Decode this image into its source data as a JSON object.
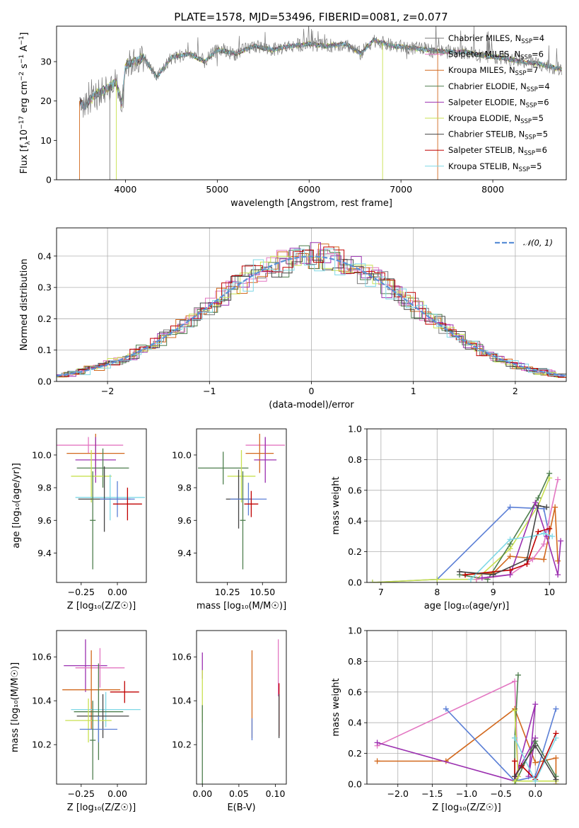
{
  "colors": {
    "chabrier_miles": "#7a7a7a",
    "salpeter_miles": "#e377c2",
    "kroupa_miles": "#d2691e",
    "chabrier_elodie": "#4f7f4f",
    "salpeter_elodie": "#9b30b0",
    "kroupa_elodie": "#c8e050",
    "chabrier_stelib": "#444444",
    "salpeter_stelib": "#c00000",
    "kroupa_stelib": "#7fd8e6",
    "extra_blue": "#5b7fd6",
    "gaussian": "#5b8fd6"
  },
  "chart_data": [
    {
      "id": "spectrum",
      "type": "line",
      "title": "PLATE=1578, MJD=53496, FIBERID=0081, z=0.077",
      "xlabel": "wavelength [Angstrom, rest frame]",
      "ylabel_parts": {
        "pre": "Flux [f",
        "sub": "λ",
        "mid": "10",
        "sup1": "−17",
        "post": " erg cm",
        "sup2": "−2",
        "s": " s",
        "sup3": "−1",
        "a": " A",
        "sup4": "−1",
        "end": "]"
      },
      "xlim": [
        3250,
        8800
      ],
      "ylim": [
        0,
        39
      ],
      "xticks": [
        4000,
        5000,
        6000,
        7000,
        8000
      ],
      "yticks": [
        0,
        10,
        20,
        30
      ],
      "legend_position": "right",
      "legend": [
        {
          "name": "Chabrier MILES",
          "n": "4",
          "color_key": "chabrier_miles"
        },
        {
          "name": "Salpeter MILES",
          "n": "6",
          "color_key": "salpeter_miles"
        },
        {
          "name": "Kroupa MILES",
          "n": "7",
          "color_key": "kroupa_miles"
        },
        {
          "name": "Chabrier ELODIE",
          "n": "4",
          "color_key": "chabrier_elodie"
        },
        {
          "name": "Salpeter ELODIE",
          "n": "6",
          "color_key": "salpeter_elodie"
        },
        {
          "name": "Kroupa ELODIE",
          "n": "5",
          "color_key": "kroupa_elodie"
        },
        {
          "name": "Chabrier STELIB",
          "n": "5",
          "color_key": "chabrier_stelib"
        },
        {
          "name": "Salpeter STELIB",
          "n": "6",
          "color_key": "salpeter_stelib"
        },
        {
          "name": "Kroupa STELIB",
          "n": "5",
          "color_key": "kroupa_stelib"
        }
      ],
      "legend_n_label": "N",
      "legend_n_sub": "SSP",
      "envelope": {
        "x": [
          3500,
          3560,
          3600,
          3700,
          3800,
          3900,
          3960,
          4000,
          4100,
          4200,
          4340,
          4500,
          4700,
          4861,
          5000,
          5200,
          5400,
          5600,
          5800,
          6000,
          6200,
          6400,
          6563,
          6700,
          6900,
          7100,
          7300,
          7500,
          7700,
          7900,
          8100,
          8300,
          8500,
          8750
        ],
        "y": [
          20,
          18.5,
          20,
          22,
          23,
          25,
          19,
          29,
          30,
          31,
          26,
          31,
          32,
          30,
          33,
          32,
          34,
          33,
          34,
          34.5,
          34,
          34.5,
          32,
          35.5,
          34,
          33.5,
          33,
          32.5,
          32.5,
          31.5,
          31,
          30,
          29.5,
          28
        ]
      }
    },
    {
      "id": "residuals",
      "type": "histogram",
      "xlabel": "(data-model)/error",
      "ylabel": "Normed distribution",
      "xlim": [
        -2.5,
        2.5
      ],
      "ylim": [
        0,
        0.49
      ],
      "xticks": [
        -2,
        -1,
        0,
        1,
        2
      ],
      "yticks": [
        0.0,
        0.1,
        0.2,
        0.3,
        0.4
      ],
      "legend_position": "top-right",
      "legend_label": "𝒩(0, 1)",
      "curve": "gaussian, mean 0, sigma 1"
    },
    {
      "id": "age_vs_Z",
      "type": "errorbar",
      "xlabel": "Z [log₁₀(Z/Z☉)]",
      "ylabel": "age  [log₁₀(age/yr)]",
      "xlim": [
        -0.42,
        0.2
      ],
      "ylim": [
        9.22,
        10.16
      ],
      "xticks": [
        -0.25,
        0.0
      ],
      "yticks": [
        9.4,
        9.6,
        9.8,
        10.0
      ],
      "points": [
        {
          "x": -0.2,
          "y": 10.06,
          "xerr": 0.24,
          "yerr": 0.05,
          "color_key": "salpeter_miles"
        },
        {
          "x": -0.15,
          "y": 10.01,
          "xerr": 0.2,
          "yerr": 0.12,
          "color_key": "kroupa_miles"
        },
        {
          "x": -0.15,
          "y": 9.97,
          "xerr": 0.14,
          "yerr": 0.14,
          "color_key": "salpeter_elodie"
        },
        {
          "x": -0.1,
          "y": 9.92,
          "xerr": 0.18,
          "yerr": 0.12,
          "color_key": "chabrier_elodie"
        },
        {
          "x": -0.18,
          "y": 9.87,
          "xerr": 0.14,
          "yerr": 0.16,
          "color_key": "kroupa_elodie"
        },
        {
          "x": -0.05,
          "y": 9.74,
          "xerr": 0.24,
          "yerr": 0.14,
          "color_key": "kroupa_stelib"
        },
        {
          "x": -0.09,
          "y": 9.73,
          "xerr": 0.18,
          "yerr": 0.2,
          "color_key": "chabrier_stelib"
        },
        {
          "x": 0.0,
          "y": 9.73,
          "xerr": 0.12,
          "yerr": 0.11,
          "color_key": "extra_blue"
        },
        {
          "x": 0.07,
          "y": 9.7,
          "xerr": 0.1,
          "yerr": 0.1,
          "color_key": "salpeter_stelib"
        },
        {
          "x": -0.17,
          "y": 9.6,
          "xerr": 0.02,
          "yerr": 0.3,
          "color_key": "chabrier_elodie"
        }
      ]
    },
    {
      "id": "age_vs_mass",
      "type": "errorbar",
      "xlabel": "mass [log₁₀(M/M☉)]",
      "ylabel": "",
      "xlim": [
        10.03,
        10.67
      ],
      "ylim": [
        9.22,
        10.16
      ],
      "xticks": [
        10.25,
        10.5
      ],
      "yticks": [
        9.4,
        9.6,
        9.8,
        10.0
      ],
      "points": [
        {
          "x": 10.52,
          "y": 10.06,
          "xerr": 0.14,
          "yerr": 0.05,
          "color_key": "salpeter_miles"
        },
        {
          "x": 10.48,
          "y": 10.01,
          "xerr": 0.1,
          "yerr": 0.12,
          "color_key": "kroupa_miles"
        },
        {
          "x": 10.52,
          "y": 9.97,
          "xerr": 0.08,
          "yerr": 0.14,
          "color_key": "salpeter_elodie"
        },
        {
          "x": 10.22,
          "y": 9.92,
          "xerr": 0.18,
          "yerr": 0.1,
          "color_key": "chabrier_elodie"
        },
        {
          "x": 10.35,
          "y": 9.87,
          "xerr": 0.1,
          "yerr": 0.16,
          "color_key": "kroupa_elodie"
        },
        {
          "x": 10.33,
          "y": 9.73,
          "xerr": 0.09,
          "yerr": 0.18,
          "color_key": "chabrier_stelib"
        },
        {
          "x": 10.4,
          "y": 9.73,
          "xerr": 0.13,
          "yerr": 0.1,
          "color_key": "extra_blue"
        },
        {
          "x": 10.42,
          "y": 9.7,
          "xerr": 0.05,
          "yerr": 0.08,
          "color_key": "salpeter_stelib"
        },
        {
          "x": 10.36,
          "y": 9.6,
          "xerr": 0.02,
          "yerr": 0.3,
          "color_key": "chabrier_elodie"
        }
      ]
    },
    {
      "id": "weight_vs_age",
      "type": "line",
      "xlabel": "age  [log₁₀(age/yr)]",
      "ylabel": "mass weight",
      "xlim": [
        6.75,
        10.3
      ],
      "ylim": [
        0.0,
        1.0
      ],
      "xticks": [
        7,
        8,
        9,
        10
      ],
      "yticks": [
        0.0,
        0.2,
        0.4,
        0.6,
        0.8,
        1.0
      ],
      "series": [
        {
          "color_key": "extra_blue",
          "x": [
            6.85,
            8.0,
            9.3,
            9.9,
            10.0
          ],
          "y": [
            0.0,
            0.02,
            0.49,
            0.48,
            0.3
          ]
        },
        {
          "color_key": "kroupa_elodie",
          "x": [
            6.85,
            8.0,
            8.7,
            9.3,
            9.8,
            10.0
          ],
          "y": [
            0.0,
            0.02,
            0.02,
            0.22,
            0.5,
            0.68
          ]
        },
        {
          "color_key": "chabrier_elodie",
          "x": [
            8.4,
            8.9,
            9.3,
            9.8,
            10.0
          ],
          "y": [
            0.05,
            0.02,
            0.25,
            0.55,
            0.71
          ]
        },
        {
          "color_key": "kroupa_miles",
          "x": [
            8.5,
            9.0,
            9.3,
            9.9,
            10.1,
            10.15
          ],
          "y": [
            0.05,
            0.06,
            0.17,
            0.15,
            0.49,
            0.14
          ]
        },
        {
          "color_key": "salpeter_miles",
          "x": [
            8.7,
            9.3,
            9.7,
            9.9,
            10.15
          ],
          "y": [
            0.02,
            0.05,
            0.15,
            0.25,
            0.67
          ]
        },
        {
          "color_key": "salpeter_elodie",
          "x": [
            8.8,
            9.3,
            9.75,
            9.95,
            10.15,
            10.2
          ],
          "y": [
            0.03,
            0.05,
            0.52,
            0.3,
            0.05,
            0.27
          ]
        },
        {
          "color_key": "salpeter_stelib",
          "x": [
            8.5,
            9.3,
            9.6,
            9.8,
            10.0
          ],
          "y": [
            0.05,
            0.08,
            0.12,
            0.33,
            0.35
          ]
        },
        {
          "color_key": "kroupa_stelib",
          "x": [
            8.6,
            9.3,
            9.7,
            9.9,
            10.05
          ],
          "y": [
            0.02,
            0.28,
            0.3,
            0.32,
            0.3
          ]
        },
        {
          "color_key": "chabrier_stelib",
          "x": [
            8.4,
            9.0,
            9.6,
            9.8,
            9.95
          ],
          "y": [
            0.07,
            0.05,
            0.15,
            0.5,
            0.49
          ]
        }
      ]
    },
    {
      "id": "mass_vs_Z",
      "type": "errorbar",
      "xlabel": "Z [log₁₀(Z/Z☉)]",
      "ylabel": "mass [log₁₀(M/M☉)]",
      "xlim": [
        -0.42,
        0.2
      ],
      "ylim": [
        10.02,
        10.72
      ],
      "xticks": [
        -0.25,
        0.0
      ],
      "yticks": [
        10.2,
        10.4,
        10.6
      ],
      "points": [
        {
          "x": -0.22,
          "y": 10.56,
          "xerr": 0.15,
          "yerr": 0.12,
          "color_key": "salpeter_elodie"
        },
        {
          "x": -0.12,
          "y": 10.55,
          "xerr": 0.17,
          "yerr": 0.09,
          "color_key": "salpeter_miles"
        },
        {
          "x": -0.18,
          "y": 10.45,
          "xerr": 0.2,
          "yerr": 0.18,
          "color_key": "kroupa_miles"
        },
        {
          "x": 0.05,
          "y": 10.44,
          "xerr": 0.1,
          "yerr": 0.05,
          "color_key": "salpeter_stelib"
        },
        {
          "x": -0.08,
          "y": 10.36,
          "xerr": 0.24,
          "yerr": 0.08,
          "color_key": "kroupa_stelib"
        },
        {
          "x": -0.13,
          "y": 10.35,
          "xerr": 0.17,
          "yerr": 0.22,
          "color_key": "chabrier_elodie"
        },
        {
          "x": -0.1,
          "y": 10.33,
          "xerr": 0.18,
          "yerr": 0.1,
          "color_key": "chabrier_stelib"
        },
        {
          "x": -0.2,
          "y": 10.31,
          "xerr": 0.16,
          "yerr": 0.1,
          "color_key": "kroupa_elodie"
        },
        {
          "x": -0.13,
          "y": 10.27,
          "xerr": 0.13,
          "yerr": 0.06,
          "color_key": "extra_blue"
        },
        {
          "x": -0.17,
          "y": 10.22,
          "xerr": 0.02,
          "yerr": 0.18,
          "color_key": "chabrier_elodie"
        }
      ]
    },
    {
      "id": "mass_vs_EBV",
      "type": "errorbar",
      "xlabel": "E(B-V)",
      "ylabel": "",
      "xlim": [
        -0.008,
        0.115
      ],
      "ylim": [
        10.02,
        10.72
      ],
      "xticks": [
        0.0,
        0.05,
        0.1
      ],
      "xtick_labels": [
        "0.00",
        "0.05",
        "0.10"
      ],
      "yticks": [
        10.2,
        10.4,
        10.6
      ],
      "points": [
        {
          "x": 0.0,
          "y": 10.56,
          "xerr": 0,
          "yerr": 0.06,
          "color_key": "salpeter_elodie"
        },
        {
          "x": 0.0,
          "y": 10.42,
          "xerr": 0,
          "yerr": 0.12,
          "color_key": "kroupa_elodie"
        },
        {
          "x": 0.0,
          "y": 10.2,
          "xerr": 0,
          "yerr": 0.18,
          "color_key": "chabrier_elodie"
        },
        {
          "x": 0.068,
          "y": 10.43,
          "xerr": 0,
          "yerr": 0.2,
          "color_key": "kroupa_miles"
        },
        {
          "x": 0.068,
          "y": 10.27,
          "xerr": 0,
          "yerr": 0.05,
          "color_key": "extra_blue"
        },
        {
          "x": 0.104,
          "y": 10.55,
          "xerr": 0,
          "yerr": 0.13,
          "color_key": "salpeter_miles"
        },
        {
          "x": 0.105,
          "y": 10.36,
          "xerr": 0,
          "yerr": 0.12,
          "color_key": "salpeter_stelib"
        },
        {
          "x": 0.105,
          "y": 10.33,
          "xerr": 0,
          "yerr": 0.1,
          "color_key": "chabrier_stelib"
        }
      ]
    },
    {
      "id": "weight_vs_Z",
      "type": "line",
      "xlabel": "Z [log₁₀(Z/Z☉)]",
      "ylabel": "mass weight",
      "xlim": [
        -2.45,
        0.45
      ],
      "ylim": [
        0.0,
        1.0
      ],
      "xticks": [
        -2.0,
        -1.5,
        -1.0,
        -0.5,
        0.0
      ],
      "xtick_labels": [
        "−2.0",
        "−1.5",
        "−1.0",
        "−0.5",
        "0.0"
      ],
      "yticks": [
        0.0,
        0.2,
        0.4,
        0.6,
        0.8,
        1.0
      ],
      "series": [
        {
          "color_key": "salpeter_miles",
          "x": [
            -2.3,
            -0.3,
            -0.25
          ],
          "y": [
            0.25,
            0.67,
            0.05
          ]
        },
        {
          "color_key": "kroupa_miles",
          "x": [
            -2.3,
            -1.3,
            -0.3,
            0.0,
            0.3,
            0.3
          ],
          "y": [
            0.15,
            0.15,
            0.49,
            0.14,
            0.17,
            0.0
          ]
        },
        {
          "color_key": "salpeter_elodie",
          "x": [
            -2.3,
            -0.3,
            0.0,
            -0.1,
            0.0,
            -0.3
          ],
          "y": [
            0.27,
            0.02,
            0.52,
            0.05,
            0.3,
            0.05
          ]
        },
        {
          "color_key": "extra_blue",
          "x": [
            -1.3,
            -0.3,
            0.0,
            0.3
          ],
          "y": [
            0.49,
            0.02,
            0.05,
            0.49
          ]
        },
        {
          "color_key": "chabrier_elodie",
          "x": [
            -0.25,
            -0.3,
            -0.3,
            0.0,
            0.3
          ],
          "y": [
            0.71,
            0.3,
            0.0,
            0.28,
            0.05
          ]
        },
        {
          "color_key": "kroupa_elodie",
          "x": [
            -0.3,
            -0.25,
            -0.3,
            0.3
          ],
          "y": [
            0.48,
            0.05,
            0.02,
            0.02
          ]
        },
        {
          "color_key": "salpeter_stelib",
          "x": [
            -0.3,
            -0.3,
            -0.2,
            0.0,
            0.3
          ],
          "y": [
            0.15,
            0.05,
            0.12,
            0.03,
            0.33
          ]
        },
        {
          "color_key": "kroupa_stelib",
          "x": [
            -0.3,
            0.0,
            0.3
          ],
          "y": [
            0.3,
            0.02,
            0.3
          ]
        },
        {
          "color_key": "chabrier_stelib",
          "x": [
            -0.3,
            0.0,
            0.3
          ],
          "y": [
            0.05,
            0.25,
            0.03
          ]
        }
      ]
    }
  ]
}
